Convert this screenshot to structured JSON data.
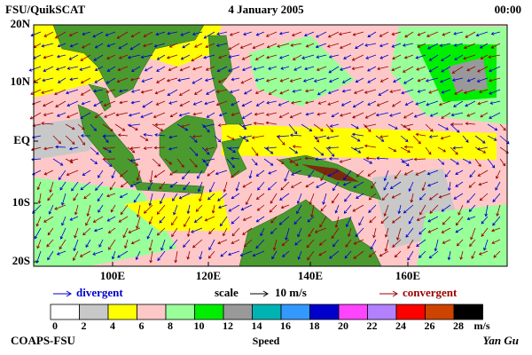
{
  "header": {
    "left": "FSU/QuikSCAT",
    "center": "4 January 2005",
    "right": "00:00"
  },
  "map": {
    "lat_labels": [
      "20N",
      "10N",
      "EQ",
      "10S",
      "20S"
    ],
    "lon_labels": [
      "100E",
      "120E",
      "140E",
      "160E"
    ]
  },
  "legend": {
    "divergent": "divergent",
    "scale": "scale",
    "scale_value": "10 m/s",
    "convergent": "convergent"
  },
  "colorbar": {
    "ticks": [
      0,
      2,
      4,
      6,
      8,
      10,
      12,
      14,
      16,
      18,
      20,
      22,
      24,
      26,
      28
    ],
    "unit": "m/s",
    "label": "Speed",
    "colors": [
      "#ffffff",
      "#c8c8c8",
      "#ffff00",
      "#ffc8c8",
      "#99ff99",
      "#00ee00",
      "#999999",
      "#00b3b3",
      "#3399ff",
      "#0000cc",
      "#ff44ff",
      "#b380ff",
      "#ff0000",
      "#cc4400",
      "#000000"
    ]
  },
  "footer": {
    "left": "COAPS-FSU",
    "right": "Yan Gu"
  }
}
